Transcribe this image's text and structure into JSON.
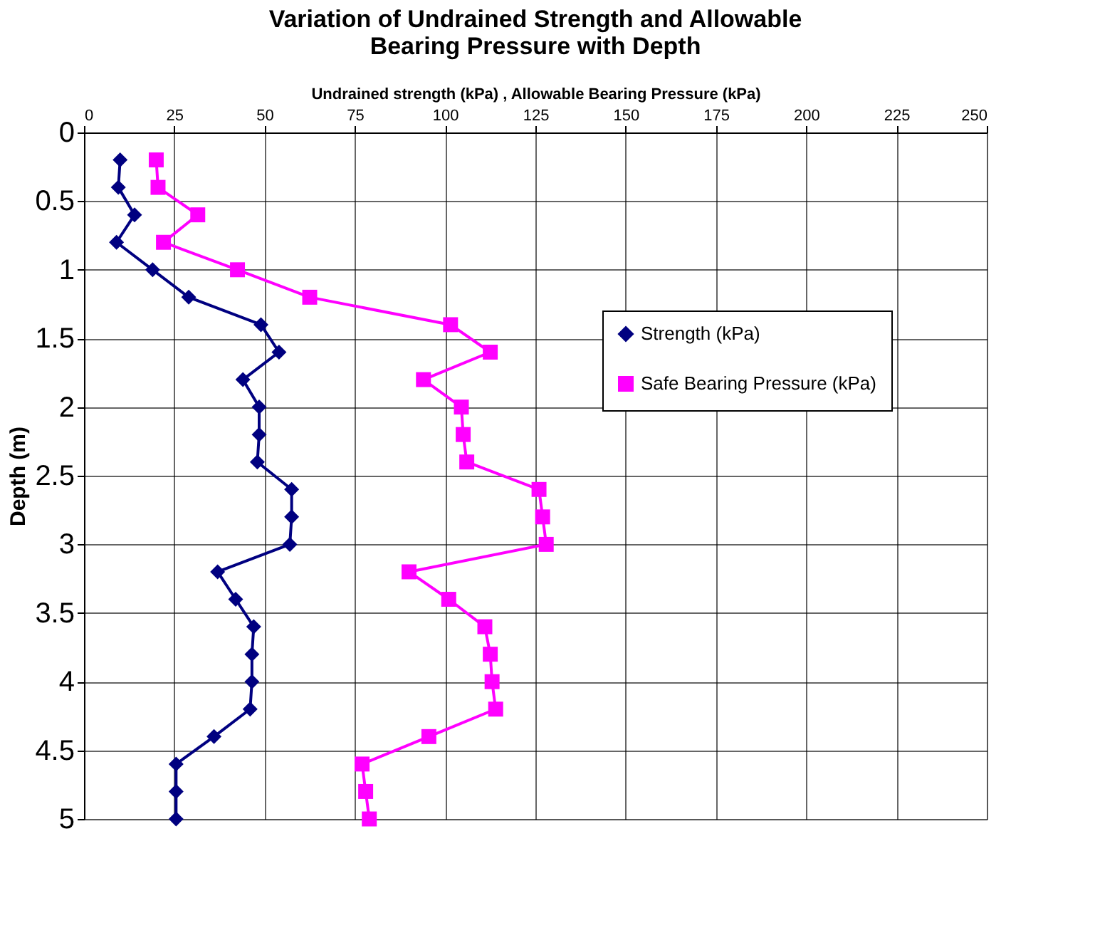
{
  "chart_data": {
    "type": "line",
    "title": "Variation of Undrained Strength and Allowable Bearing Pressure with Depth",
    "xlabel": "Undrained strength (kPa) ,  Allowable Bearing Pressure (kPa)",
    "ylabel": "Depth (m)",
    "xlim": [
      0,
      250
    ],
    "xticks": [
      0,
      25,
      50,
      75,
      100,
      125,
      150,
      175,
      200,
      225,
      250
    ],
    "ylim": [
      5,
      0
    ],
    "yticks": [
      0,
      0.5,
      1,
      1.5,
      2,
      2.5,
      3,
      3.5,
      4,
      4.5,
      5
    ],
    "grid": true,
    "legend": "right",
    "line_style": "solid",
    "series": [
      {
        "name": "Strength (kPa)",
        "color": "#000080",
        "marker": "diamond",
        "x": [
          10,
          9.5,
          14,
          9,
          19,
          29,
          49,
          54,
          44,
          48.5,
          48.5,
          48,
          57.5,
          57.5,
          57,
          37,
          42,
          47,
          46.5,
          46.5,
          46,
          36,
          25.5,
          25.5,
          25.5
        ],
        "values": [
          0.2,
          0.4,
          0.6,
          0.8,
          1.0,
          1.2,
          1.4,
          1.6,
          1.8,
          2.0,
          2.2,
          2.4,
          2.6,
          2.8,
          3.0,
          3.2,
          3.4,
          3.6,
          3.8,
          4.0,
          4.2,
          4.4,
          4.6,
          4.8,
          5.0
        ]
      },
      {
        "name": "Safe Bearing Pressure (kPa)",
        "color": "#ff00ff",
        "marker": "square",
        "x": [
          20,
          20.5,
          31.5,
          22,
          42.5,
          62.5,
          101.5,
          112.5,
          94,
          104.5,
          105,
          106,
          126,
          127,
          128,
          90,
          101,
          111,
          112.5,
          113,
          114,
          95.5,
          77,
          78,
          79
        ],
        "values": [
          0.2,
          0.4,
          0.6,
          0.8,
          1.0,
          1.2,
          1.4,
          1.6,
          1.8,
          2.0,
          2.2,
          2.4,
          2.6,
          2.8,
          3.0,
          3.2,
          3.4,
          3.6,
          3.8,
          4.0,
          4.2,
          4.4,
          4.6,
          4.8,
          5.0
        ]
      }
    ]
  }
}
